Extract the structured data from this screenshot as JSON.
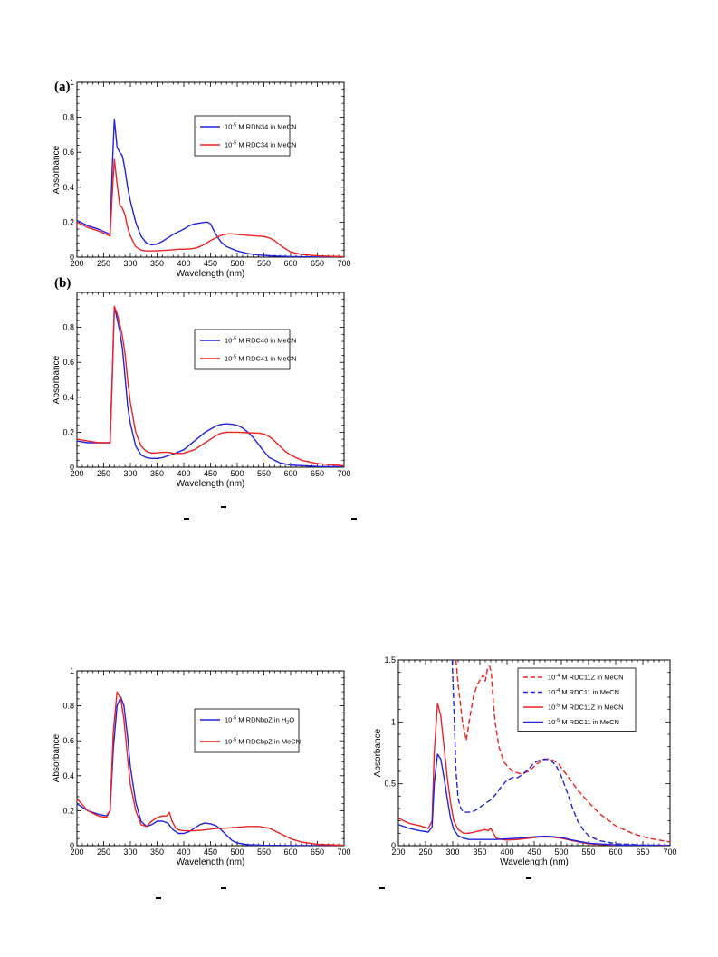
{
  "panel_labels": {
    "a": "(a)",
    "b": "(b)"
  },
  "chart_data": [
    {
      "type": "line",
      "title": "",
      "xlabel": "Wavelength (nm)",
      "ylabel": "Absorbance",
      "xlim": [
        200,
        700
      ],
      "ylim": [
        0,
        1
      ],
      "xticks": [
        200,
        250,
        300,
        350,
        400,
        450,
        500,
        550,
        600,
        650,
        700
      ],
      "yticks": [
        0,
        0.2,
        0.4,
        0.6,
        0.8,
        1
      ],
      "ytick_labels": [
        "0",
        "0.2",
        "0.4",
        "0.6",
        "0.8",
        "1"
      ],
      "legend": {
        "position": "right-middle",
        "entries": [
          {
            "text": "10-5 M RDN34 in MeCN",
            "base": "10",
            "sup": "-5",
            "rest": " M RDN34 in MeCN",
            "color": "#2222dd",
            "dash": false
          },
          {
            "text": "10-5 M RDC34 in MeCN",
            "base": "10",
            "sup": "-5",
            "rest": " M RDC34 in MeCN",
            "color": "#ee2222",
            "dash": false
          }
        ]
      },
      "series": [
        {
          "color": "#2222dd",
          "dash": false,
          "x": [
            200,
            220,
            240,
            255,
            262,
            266,
            270,
            275,
            280,
            285,
            290,
            295,
            300,
            310,
            320,
            330,
            340,
            350,
            360,
            370,
            380,
            390,
            400,
            410,
            420,
            430,
            440,
            445,
            450,
            455,
            460,
            470,
            480,
            500,
            520,
            540,
            560,
            580,
            600,
            620,
            650,
            700
          ],
          "y": [
            0.21,
            0.18,
            0.16,
            0.14,
            0.13,
            0.5,
            0.79,
            0.63,
            0.6,
            0.58,
            0.5,
            0.4,
            0.32,
            0.2,
            0.12,
            0.08,
            0.07,
            0.075,
            0.09,
            0.11,
            0.13,
            0.145,
            0.16,
            0.18,
            0.19,
            0.195,
            0.2,
            0.2,
            0.19,
            0.16,
            0.13,
            0.085,
            0.06,
            0.035,
            0.02,
            0.012,
            0.008,
            0.005,
            0.003,
            0.002,
            0.001,
            0.0
          ]
        },
        {
          "color": "#ee2222",
          "dash": false,
          "x": [
            200,
            220,
            240,
            255,
            262,
            266,
            270,
            275,
            280,
            285,
            290,
            295,
            300,
            310,
            320,
            330,
            340,
            350,
            360,
            370,
            380,
            390,
            400,
            410,
            420,
            430,
            440,
            450,
            460,
            470,
            480,
            490,
            500,
            520,
            540,
            550,
            560,
            570,
            580,
            590,
            600,
            620,
            650,
            680,
            700
          ],
          "y": [
            0.2,
            0.17,
            0.15,
            0.13,
            0.12,
            0.35,
            0.56,
            0.42,
            0.3,
            0.28,
            0.24,
            0.17,
            0.12,
            0.06,
            0.04,
            0.035,
            0.035,
            0.037,
            0.038,
            0.04,
            0.042,
            0.045,
            0.045,
            0.047,
            0.05,
            0.06,
            0.075,
            0.095,
            0.11,
            0.125,
            0.132,
            0.133,
            0.13,
            0.125,
            0.12,
            0.118,
            0.11,
            0.095,
            0.07,
            0.048,
            0.03,
            0.015,
            0.007,
            0.004,
            0.003
          ]
        }
      ]
    },
    {
      "type": "line",
      "title": "",
      "xlabel": "Wavelength (nm)",
      "ylabel": "Absorbance",
      "xlim": [
        200,
        700
      ],
      "ylim": [
        0,
        1
      ],
      "xticks": [
        200,
        250,
        300,
        350,
        400,
        450,
        500,
        550,
        600,
        650,
        700
      ],
      "yticks": [
        0,
        0.2,
        0.4,
        0.6,
        0.8
      ],
      "ytick_labels": [
        "0",
        "0.2",
        "0.4",
        "0.6",
        "0.8"
      ],
      "legend": {
        "position": "right-middle",
        "entries": [
          {
            "text": "10-5 M RDC40 in MeCN",
            "base": "10",
            "sup": "-5",
            "rest": " M RDC40 in MeCN",
            "color": "#2222dd",
            "dash": false
          },
          {
            "text": "10-5 M RDC41 in MeCN",
            "base": "10",
            "sup": "-5",
            "rest": " M RDC41 in MeCN",
            "color": "#ee2222",
            "dash": false
          }
        ]
      },
      "series": [
        {
          "color": "#2222dd",
          "dash": false,
          "x": [
            200,
            220,
            240,
            255,
            262,
            266,
            270,
            275,
            280,
            285,
            290,
            295,
            300,
            310,
            320,
            330,
            340,
            350,
            360,
            380,
            400,
            420,
            440,
            460,
            470,
            480,
            490,
            500,
            510,
            520,
            530,
            540,
            550,
            560,
            580,
            600,
            650,
            700
          ],
          "y": [
            0.15,
            0.14,
            0.14,
            0.14,
            0.14,
            0.5,
            0.92,
            0.85,
            0.78,
            0.68,
            0.52,
            0.35,
            0.25,
            0.12,
            0.07,
            0.055,
            0.05,
            0.05,
            0.055,
            0.075,
            0.1,
            0.15,
            0.2,
            0.235,
            0.245,
            0.248,
            0.245,
            0.24,
            0.225,
            0.2,
            0.17,
            0.13,
            0.09,
            0.055,
            0.025,
            0.012,
            0.004,
            0.002
          ]
        },
        {
          "color": "#ee2222",
          "dash": false,
          "x": [
            200,
            220,
            240,
            255,
            262,
            266,
            270,
            275,
            280,
            285,
            290,
            295,
            300,
            310,
            320,
            330,
            340,
            350,
            360,
            370,
            380,
            390,
            400,
            420,
            440,
            460,
            470,
            480,
            490,
            500,
            520,
            540,
            550,
            560,
            570,
            580,
            590,
            600,
            620,
            650,
            700
          ],
          "y": [
            0.16,
            0.15,
            0.14,
            0.14,
            0.14,
            0.5,
            0.92,
            0.88,
            0.82,
            0.75,
            0.65,
            0.5,
            0.37,
            0.2,
            0.12,
            0.09,
            0.08,
            0.082,
            0.085,
            0.085,
            0.08,
            0.078,
            0.08,
            0.1,
            0.14,
            0.18,
            0.195,
            0.2,
            0.2,
            0.2,
            0.197,
            0.195,
            0.19,
            0.175,
            0.15,
            0.12,
            0.09,
            0.07,
            0.04,
            0.02,
            0.008
          ]
        }
      ]
    },
    {
      "type": "line",
      "title": "",
      "xlabel": "Wavelength (nm)",
      "ylabel": "Absorbance",
      "xlim": [
        200,
        700
      ],
      "ylim": [
        0,
        1
      ],
      "xticks": [
        200,
        250,
        300,
        350,
        400,
        450,
        500,
        550,
        600,
        650,
        700
      ],
      "yticks": [
        0,
        0.2,
        0.4,
        0.6,
        0.8,
        1
      ],
      "ytick_labels": [
        "0",
        "0.2",
        "0.4",
        "0.6",
        "0.8",
        "1"
      ],
      "legend": {
        "position": "right-middle",
        "entries": [
          {
            "text": "10-5 M RDNbpZ in H2O",
            "base": "10",
            "sup": "-5",
            "rest": " M RDNbpZ in H",
            "sub": "2",
            "tail": "O",
            "color": "#2222dd",
            "dash": false
          },
          {
            "text": "10-5 M RDCbpZ in MeCN",
            "base": "10",
            "sup": "-5",
            "rest": " M RDCbpZ in MeCN",
            "color": "#ee2222",
            "dash": false
          }
        ]
      },
      "series": [
        {
          "color": "#2222dd",
          "dash": false,
          "x": [
            200,
            220,
            240,
            255,
            262,
            268,
            275,
            282,
            288,
            295,
            300,
            310,
            320,
            330,
            340,
            350,
            360,
            370,
            375,
            380,
            390,
            400,
            410,
            420,
            430,
            440,
            450,
            460,
            470,
            480,
            490,
            500,
            520,
            550,
            600,
            700
          ],
          "y": [
            0.24,
            0.2,
            0.18,
            0.17,
            0.2,
            0.55,
            0.8,
            0.85,
            0.8,
            0.62,
            0.45,
            0.25,
            0.14,
            0.11,
            0.12,
            0.14,
            0.14,
            0.13,
            0.11,
            0.09,
            0.07,
            0.07,
            0.08,
            0.1,
            0.12,
            0.13,
            0.125,
            0.115,
            0.09,
            0.06,
            0.03,
            0.015,
            0.005,
            0.002,
            0.001,
            0.0
          ]
        },
        {
          "color": "#ee2222",
          "dash": false,
          "x": [
            200,
            220,
            240,
            255,
            262,
            268,
            275,
            282,
            288,
            295,
            300,
            310,
            320,
            330,
            340,
            350,
            360,
            368,
            373,
            378,
            385,
            390,
            400,
            420,
            440,
            460,
            480,
            500,
            520,
            540,
            560,
            580,
            600,
            620,
            650,
            700
          ],
          "y": [
            0.27,
            0.2,
            0.17,
            0.16,
            0.2,
            0.65,
            0.88,
            0.84,
            0.72,
            0.5,
            0.35,
            0.2,
            0.12,
            0.11,
            0.14,
            0.16,
            0.17,
            0.17,
            0.19,
            0.14,
            0.1,
            0.09,
            0.085,
            0.085,
            0.09,
            0.098,
            0.1,
            0.105,
            0.11,
            0.11,
            0.1,
            0.07,
            0.04,
            0.02,
            0.008,
            0.002
          ]
        }
      ]
    },
    {
      "type": "line",
      "title": "",
      "xlabel": "Wavelength (nm)",
      "ylabel": "Absorbance",
      "xlim": [
        200,
        700
      ],
      "ylim": [
        0,
        1.5
      ],
      "xticks": [
        200,
        250,
        300,
        350,
        400,
        450,
        500,
        550,
        600,
        650,
        700
      ],
      "yticks": [
        0,
        0.5,
        1,
        1.5
      ],
      "ytick_labels": [
        "0",
        "0.5",
        "1",
        "1.5"
      ],
      "legend": {
        "position": "top-right",
        "entries": [
          {
            "text": "10-4 M RDC11Z in MeCN",
            "base": "10",
            "sup": "-4",
            "rest": " M RDC11Z in MeCN",
            "color": "#ee2222",
            "dash": true
          },
          {
            "text": "10-4 M RDC11 in MeCN",
            "base": "10",
            "sup": "-4",
            "rest": " M RDC11 in MeCN",
            "color": "#2222dd",
            "dash": true
          },
          {
            "text": "10-5 M RDC11Z in MeCN",
            "base": "10",
            "sup": "-5",
            "rest": " M RDC11Z in MeCN",
            "color": "#ee2222",
            "dash": false
          },
          {
            "text": "10-5 M RDC11 in MeCN",
            "base": "10",
            "sup": "-5",
            "rest": " M RDC11 in MeCN",
            "color": "#2222dd",
            "dash": false
          }
        ]
      },
      "series": [
        {
          "color": "#ee2222",
          "dash": true,
          "x": [
            306,
            310,
            318,
            325,
            332,
            338,
            345,
            352,
            356,
            360,
            364,
            368,
            371,
            374,
            378,
            385,
            395,
            410,
            425,
            440,
            455,
            465,
            475,
            485,
            495,
            510,
            530,
            550,
            570,
            600,
            630,
            660,
            700
          ],
          "y": [
            1.5,
            1.3,
            1.0,
            0.85,
            1.05,
            1.2,
            1.3,
            1.35,
            1.38,
            1.33,
            1.43,
            1.45,
            1.4,
            1.2,
            1.0,
            0.8,
            0.67,
            0.6,
            0.58,
            0.6,
            0.66,
            0.69,
            0.7,
            0.69,
            0.66,
            0.57,
            0.45,
            0.35,
            0.26,
            0.16,
            0.1,
            0.06,
            0.03
          ]
        },
        {
          "color": "#2222dd",
          "dash": true,
          "x": [
            299,
            303,
            306,
            310,
            315,
            320,
            330,
            340,
            350,
            360,
            370,
            380,
            390,
            400,
            410,
            420,
            430,
            440,
            450,
            460,
            470,
            480,
            490,
            500,
            510,
            520,
            530,
            540,
            550,
            570,
            600,
            650,
            700
          ],
          "y": [
            1.5,
            1.0,
            0.6,
            0.38,
            0.3,
            0.27,
            0.27,
            0.28,
            0.31,
            0.34,
            0.37,
            0.42,
            0.48,
            0.53,
            0.55,
            0.55,
            0.58,
            0.62,
            0.67,
            0.69,
            0.7,
            0.69,
            0.65,
            0.56,
            0.44,
            0.31,
            0.2,
            0.13,
            0.08,
            0.04,
            0.015,
            0.005,
            0.002
          ]
        },
        {
          "color": "#ee2222",
          "dash": false,
          "x": [
            200,
            220,
            240,
            255,
            262,
            266,
            272,
            278,
            284,
            290,
            296,
            302,
            310,
            320,
            330,
            340,
            350,
            360,
            365,
            370,
            375,
            380,
            390,
            400,
            420,
            440,
            460,
            480,
            500,
            520,
            550,
            600,
            700
          ],
          "y": [
            0.22,
            0.18,
            0.16,
            0.14,
            0.2,
            0.75,
            1.15,
            1.05,
            0.8,
            0.55,
            0.35,
            0.2,
            0.13,
            0.1,
            0.1,
            0.11,
            0.12,
            0.13,
            0.12,
            0.14,
            0.1,
            0.06,
            0.05,
            0.045,
            0.05,
            0.06,
            0.07,
            0.07,
            0.06,
            0.04,
            0.015,
            0.004,
            0.001
          ]
        },
        {
          "color": "#2222dd",
          "dash": false,
          "x": [
            200,
            220,
            240,
            255,
            262,
            266,
            272,
            278,
            284,
            290,
            296,
            302,
            310,
            320,
            330,
            340,
            360,
            380,
            400,
            420,
            440,
            460,
            470,
            480,
            500,
            520,
            550,
            600,
            700
          ],
          "y": [
            0.17,
            0.14,
            0.12,
            0.11,
            0.15,
            0.5,
            0.74,
            0.7,
            0.55,
            0.38,
            0.22,
            0.13,
            0.08,
            0.06,
            0.05,
            0.05,
            0.05,
            0.05,
            0.055,
            0.06,
            0.068,
            0.075,
            0.076,
            0.075,
            0.065,
            0.045,
            0.02,
            0.006,
            0.001
          ]
        }
      ]
    }
  ]
}
